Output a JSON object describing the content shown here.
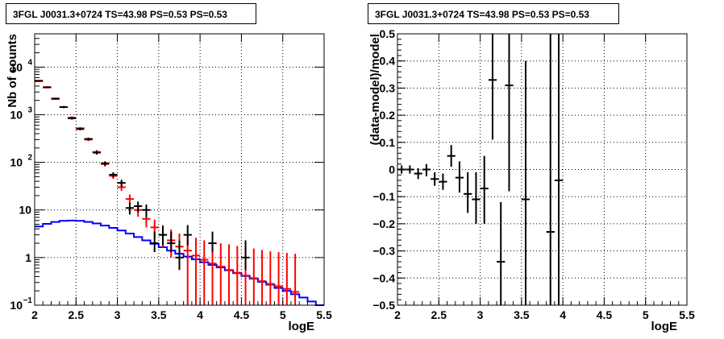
{
  "chart_data": [
    {
      "type": "line",
      "title": "3FGL J0031.3+0724 TS=43.98 PS=0.53 PS=0.53",
      "xlabel": "logE",
      "ylabel": "Nb of counts",
      "xlim": [
        2,
        5.5
      ],
      "ylim": [
        0.1,
        50000
      ],
      "yscale": "log",
      "grid": true,
      "x_ticks": [
        "2",
        "2.5",
        "3",
        "3.5",
        "4",
        "4.5",
        "5",
        "5.5"
      ],
      "y_ticks": [
        {
          "value": 0.1,
          "base": "10",
          "exp": "−1"
        },
        {
          "value": 1,
          "base": "1",
          "exp": ""
        },
        {
          "value": 10,
          "base": "10",
          "exp": ""
        },
        {
          "value": 100,
          "base": "10",
          "exp": "2"
        },
        {
          "value": 1000,
          "base": "10",
          "exp": "3"
        },
        {
          "value": 10000,
          "base": "10",
          "exp": "4"
        }
      ],
      "x_edges": [
        2.0,
        2.1,
        2.2,
        2.3,
        2.4,
        2.5,
        2.6,
        2.7,
        2.8,
        2.9,
        3.0,
        3.1,
        3.2,
        3.3,
        3.4,
        3.5,
        3.6,
        3.7,
        3.8,
        3.9,
        4.0,
        4.1,
        4.2,
        4.3,
        4.4,
        4.5,
        4.6,
        4.7,
        4.8,
        4.9,
        5.0,
        5.1,
        5.2,
        5.3,
        5.4,
        5.5
      ],
      "series": [
        {
          "color": "#0000ff",
          "style": "step",
          "values": [
            4.5,
            5.1,
            5.6,
            5.9,
            6.0,
            5.9,
            5.6,
            5.2,
            4.7,
            4.2,
            3.7,
            3.2,
            2.7,
            2.3,
            1.95,
            1.65,
            1.4,
            1.2,
            1.05,
            0.92,
            0.8,
            0.7,
            0.62,
            0.54,
            0.47,
            0.41,
            0.36,
            0.31,
            0.27,
            0.23,
            0.2,
            0.17,
            0.145,
            0.12,
            0.1
          ]
        },
        {
          "color": "#ff0000",
          "style": "errorbar",
          "points": [
            {
              "x": 2.05,
              "y": 5200,
              "lo": 5000,
              "hi": 5400
            },
            {
              "x": 2.15,
              "y": 3800,
              "lo": 3650,
              "hi": 3950
            },
            {
              "x": 2.25,
              "y": 2200,
              "lo": 2100,
              "hi": 2300
            },
            {
              "x": 2.35,
              "y": 1450,
              "lo": 1380,
              "hi": 1520
            },
            {
              "x": 2.45,
              "y": 870,
              "lo": 820,
              "hi": 920
            },
            {
              "x": 2.55,
              "y": 520,
              "lo": 490,
              "hi": 550
            },
            {
              "x": 2.65,
              "y": 300,
              "lo": 280,
              "hi": 320
            },
            {
              "x": 2.75,
              "y": 165,
              "lo": 150,
              "hi": 180
            },
            {
              "x": 2.85,
              "y": 92,
              "lo": 82,
              "hi": 102
            },
            {
              "x": 2.95,
              "y": 52,
              "lo": 45,
              "hi": 59
            },
            {
              "x": 3.05,
              "y": 30,
              "lo": 25,
              "hi": 35
            },
            {
              "x": 3.15,
              "y": 17,
              "lo": 13,
              "hi": 21
            },
            {
              "x": 3.25,
              "y": 10,
              "lo": 7.2,
              "hi": 13
            },
            {
              "x": 3.35,
              "y": 6.5,
              "lo": 4.3,
              "hi": 9
            },
            {
              "x": 3.45,
              "y": 4.3,
              "lo": 2.6,
              "hi": 6.3
            },
            {
              "x": 3.55,
              "y": 3.0,
              "lo": 1.6,
              "hi": 4.8
            },
            {
              "x": 3.65,
              "y": 2.3,
              "lo": 1.0,
              "hi": 3.9
            },
            {
              "x": 3.75,
              "y": 1.7,
              "lo": 0.6,
              "hi": 3.2
            },
            {
              "x": 3.85,
              "y": 1.4,
              "lo": 0.1,
              "hi": 3.0
            },
            {
              "x": 3.95,
              "y": 1.1,
              "lo": 0.1,
              "hi": 2.6
            },
            {
              "x": 4.05,
              "y": 0.9,
              "lo": 0.1,
              "hi": 2.3
            },
            {
              "x": 4.15,
              "y": 0.75,
              "lo": 0.1,
              "hi": 2.1
            },
            {
              "x": 4.25,
              "y": 0.65,
              "lo": 0.1,
              "hi": 2.0
            },
            {
              "x": 4.35,
              "y": 0.55,
              "lo": 0.1,
              "hi": 1.9
            },
            {
              "x": 4.45,
              "y": 0.48,
              "lo": 0.1,
              "hi": 1.75
            },
            {
              "x": 4.55,
              "y": 0.42,
              "lo": 0.1,
              "hi": 1.65
            },
            {
              "x": 4.65,
              "y": 0.37,
              "lo": 0.1,
              "hi": 1.55
            },
            {
              "x": 4.75,
              "y": 0.32,
              "lo": 0.1,
              "hi": 1.45
            },
            {
              "x": 4.85,
              "y": 0.28,
              "lo": 0.1,
              "hi": 1.35
            },
            {
              "x": 4.95,
              "y": 0.25,
              "lo": 0.1,
              "hi": 1.3
            },
            {
              "x": 5.05,
              "y": 0.22,
              "lo": 0.1,
              "hi": 1.25
            },
            {
              "x": 5.15,
              "y": 0.19,
              "lo": 0.1,
              "hi": 1.2
            }
          ]
        },
        {
          "color": "#000000",
          "style": "errorbar",
          "points": [
            {
              "x": 2.05,
              "y": 5100,
              "lo": 4950,
              "hi": 5250
            },
            {
              "x": 2.15,
              "y": 3750,
              "lo": 3600,
              "hi": 3900
            },
            {
              "x": 2.25,
              "y": 2150,
              "lo": 2050,
              "hi": 2250
            },
            {
              "x": 2.35,
              "y": 1450,
              "lo": 1380,
              "hi": 1520
            },
            {
              "x": 2.45,
              "y": 840,
              "lo": 790,
              "hi": 890
            },
            {
              "x": 2.55,
              "y": 500,
              "lo": 470,
              "hi": 530
            },
            {
              "x": 2.65,
              "y": 310,
              "lo": 290,
              "hi": 330
            },
            {
              "x": 2.75,
              "y": 160,
              "lo": 145,
              "hi": 175
            },
            {
              "x": 2.85,
              "y": 95,
              "lo": 85,
              "hi": 105
            },
            {
              "x": 2.95,
              "y": 55,
              "lo": 48,
              "hi": 62
            },
            {
              "x": 3.05,
              "y": 37,
              "lo": 31,
              "hi": 43
            },
            {
              "x": 3.15,
              "y": 11,
              "lo": 8,
              "hi": 14
            },
            {
              "x": 3.25,
              "y": 12,
              "lo": 9,
              "hi": 15
            },
            {
              "x": 3.35,
              "y": 10,
              "lo": 7,
              "hi": 13
            },
            {
              "x": 3.45,
              "y": 2,
              "lo": 1.3,
              "hi": 3.5
            },
            {
              "x": 3.55,
              "y": 3,
              "lo": 1.8,
              "hi": 4.6
            },
            {
              "x": 3.65,
              "y": 2,
              "lo": 1.3,
              "hi": 3.5
            },
            {
              "x": 3.75,
              "y": 1,
              "lo": 0.55,
              "hi": 2.3
            },
            {
              "x": 3.85,
              "y": 3,
              "lo": 1.8,
              "hi": 4.8
            },
            {
              "x": 4.15,
              "y": 2,
              "lo": 1.3,
              "hi": 3.5
            },
            {
              "x": 4.55,
              "y": 1,
              "lo": 0.55,
              "hi": 2.3
            }
          ]
        }
      ]
    },
    {
      "type": "line",
      "title": "3FGL J0031.3+0724 TS=43.98 PS=0.53 PS=0.53",
      "xlabel": "logE",
      "ylabel": "(data-model)/model",
      "xlim": [
        2,
        5.5
      ],
      "ylim": [
        -0.5,
        0.5
      ],
      "grid": true,
      "x_ticks": [
        "2",
        "2.5",
        "3",
        "3.5",
        "4",
        "4.5",
        "5",
        "5.5"
      ],
      "y_ticks": [
        "−0.5",
        "−0.4",
        "−0.3",
        "−0.2",
        "−0.1",
        "0",
        "0.1",
        "0.2",
        "0.3",
        "0.4",
        "0.5"
      ],
      "series": [
        {
          "color": "#000000",
          "style": "errorbar",
          "points": [
            {
              "x": 2.05,
              "y": 0.0,
              "lo": -0.015,
              "hi": 0.015
            },
            {
              "x": 2.15,
              "y": 0.0,
              "lo": -0.015,
              "hi": 0.015
            },
            {
              "x": 2.25,
              "y": -0.015,
              "lo": -0.035,
              "hi": 0.005
            },
            {
              "x": 2.35,
              "y": 0.0,
              "lo": -0.025,
              "hi": 0.02
            },
            {
              "x": 2.45,
              "y": -0.035,
              "lo": -0.06,
              "hi": -0.01
            },
            {
              "x": 2.55,
              "y": -0.045,
              "lo": -0.075,
              "hi": -0.015
            },
            {
              "x": 2.65,
              "y": 0.05,
              "lo": 0.01,
              "hi": 0.09
            },
            {
              "x": 2.75,
              "y": -0.03,
              "lo": -0.085,
              "hi": 0.03
            },
            {
              "x": 2.85,
              "y": -0.09,
              "lo": -0.16,
              "hi": -0.01
            },
            {
              "x": 2.95,
              "y": -0.11,
              "lo": -0.2,
              "hi": -0.01
            },
            {
              "x": 3.05,
              "y": -0.07,
              "lo": -0.2,
              "hi": 0.05
            },
            {
              "x": 3.15,
              "y": 0.33,
              "lo": 0.11,
              "hi": 0.56
            },
            {
              "x": 3.25,
              "y": -0.34,
              "lo": -0.52,
              "hi": -0.12
            },
            {
              "x": 3.35,
              "y": 0.31,
              "lo": -0.08,
              "hi": 0.7
            },
            {
              "x": 3.55,
              "y": -0.11,
              "lo": -0.6,
              "hi": 0.4
            },
            {
              "x": 3.85,
              "y": -0.23,
              "lo": -0.6,
              "hi": 0.6
            },
            {
              "x": 3.95,
              "y": -0.04,
              "lo": -0.6,
              "hi": 0.6
            }
          ]
        }
      ]
    }
  ]
}
